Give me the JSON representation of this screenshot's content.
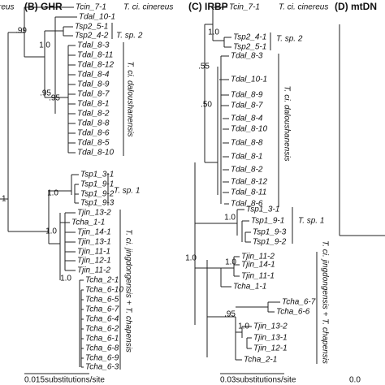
{
  "left_fragment": {
    "title": "reus",
    "support": "1"
  },
  "panel_b": {
    "title": "(B) GHR",
    "tips": [
      "Tcin_7-1",
      "Tdal_10-1",
      "Tsp2_5-1",
      "Tsp2_4-2",
      "Tdal_8-3",
      "Tdal_8-11",
      "Tdal_8-12",
      "Tdal_8-4",
      "Tdal_8-9",
      "Tdal_8-7",
      "Tdal_8-1",
      "Tdal_8-2",
      "Tdal_8-8",
      "Tdal_8-6",
      "Tdal_8-5",
      "Tdal_8-10",
      "Tsp1_3-1",
      "Tsp1_9-1",
      "Tsp1_9-2",
      "Tsp1_9-3",
      "Tjin_13-2",
      "Tcha_1-1",
      "Tjin_14-1",
      "Tjin_13-1",
      "Tjin_11-1",
      "Tjin_12-1",
      "Tjin_11-2",
      "Tcha_2-1",
      "Tcha_6-10",
      "Tcha_6-5",
      "Tcha_6-7",
      "Tcha_6-4",
      "Tcha_6-2",
      "Tcha_6-1",
      "Tcha_6-8",
      "Tcha_6-9",
      "Tcha_6-3"
    ],
    "support": [
      ".99",
      "1.0",
      ".95",
      ".95",
      "1.0",
      "1.0",
      "1.0"
    ],
    "clades": [
      "T. ci. cinereus",
      "T. sp. 2",
      "T. ci. daloushanensis",
      "T. sp. 1",
      "T. ci. jingdongensis + T. chapensis"
    ],
    "scale": "0.015substitutions/site"
  },
  "panel_c": {
    "title": "(C) IRBP",
    "tips": [
      "Tcin_7-1",
      "Tsp2_4-1",
      "Tsp2_5-1",
      "Tdal_8-3",
      "Tdal_10-1",
      "Tdal_8-9",
      "Tdal_8-7",
      "Tdal_8-4",
      "Tdal_8-10",
      "Tdal_8-8",
      "Tdal_8-1",
      "Tdal_8-2",
      "Tdal_8-12",
      "Tdal_8-11",
      "Tdal_8-6",
      "Tsp1_3-1",
      "Tsp1_9-1",
      "Tsp1_9-3",
      "Tsp1_9-2",
      "Tjin_11-2",
      "Tjin_14-1",
      "Tjin_11-1",
      "Tcha_1-1",
      "Tcha_6-7",
      "Tcha_6-6",
      "Tjin_13-2",
      "Tjin_13-1",
      "Tjin_12-1",
      "Tcha_2-1"
    ],
    "support": [
      "1.0",
      ".55",
      ".50",
      "1.0",
      "1.0",
      "1.0",
      ".95",
      "1.0"
    ],
    "clades": [
      "T. ci. cinereus",
      "T. sp. 2",
      "T. ci. daloushanensis",
      "T. sp. 1",
      "T. ci. jingdongensis + T. chapensis"
    ],
    "scale": "0.03substitutions/site"
  },
  "panel_d": {
    "title": "(D) mtDN",
    "scale": "0.0"
  }
}
